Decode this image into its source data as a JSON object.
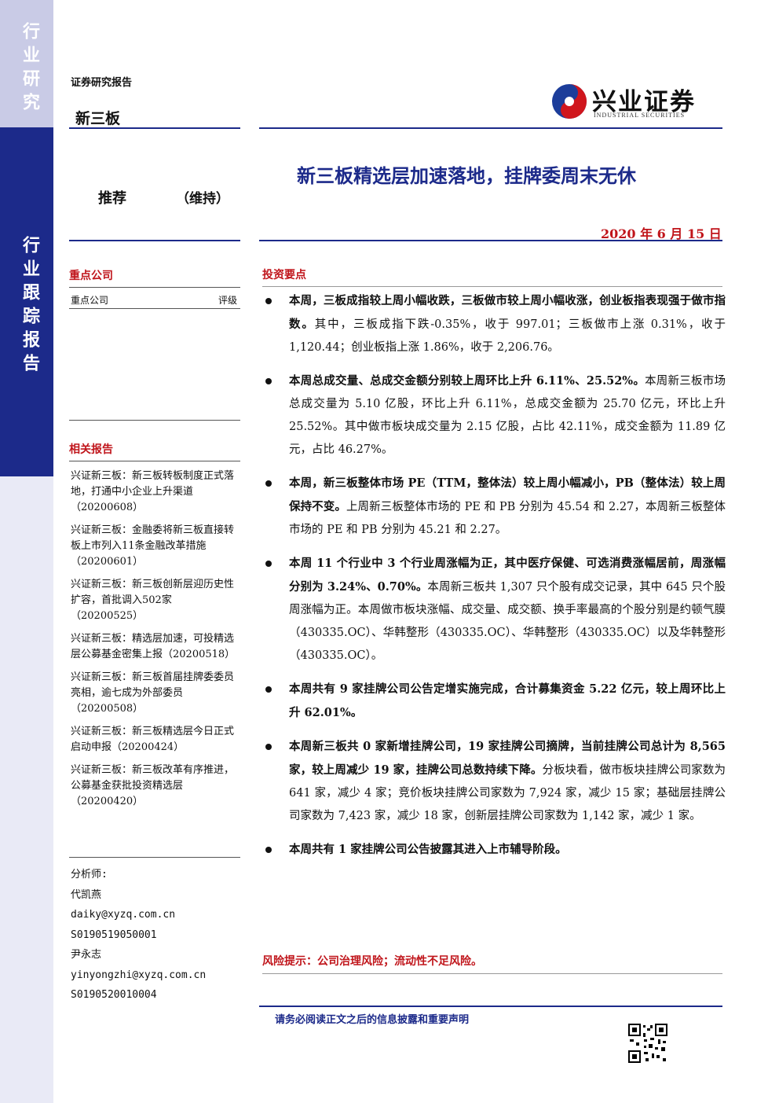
{
  "sidebar": {
    "top": "行业研究",
    "bottom": "行业跟踪报告"
  },
  "header": {
    "report_type": "证券研究报告",
    "sector": "新三板",
    "logo_cn": "兴业证券",
    "logo_en": "INDUSTRIAL SECURITIES"
  },
  "title": "新三板精选层加速落地，挂牌委周末无休",
  "rating": {
    "label": "推荐",
    "note": "（维持）"
  },
  "date": "2020 年 6 月 15 日",
  "key_companies": {
    "heading": "重点公司",
    "col1": "重点公司",
    "col2": "评级"
  },
  "related_reports": {
    "heading": "相关报告",
    "items": [
      "兴证新三板：新三板转板制度正式落地，打通中小企业上升渠道（20200608）",
      "兴证新三板：金融委将新三板直接转板上市列入11条金融改革措施（20200601）",
      "兴证新三板：新三板创新层迎历史性扩容，首批调入502家（20200525）",
      "兴证新三板：精选层加速，可投精选层公募基金密集上报（20200518）",
      "兴证新三板：新三板首届挂牌委委员亮相，逾七成为外部委员（20200508）",
      "兴证新三板：新三板精选层今日正式启动申报（20200424）",
      "兴证新三板：新三板改革有序推进，公募基金获批投资精选层（20200420）"
    ]
  },
  "analysts": {
    "label": "分析师:",
    "lines": [
      "代凯燕",
      "daiky@xyzq.com.cn",
      "S0190519050001",
      "尹永志",
      "yinyongzhi@xyzq.com.cn",
      "S0190520010004"
    ]
  },
  "summary": {
    "heading": "投资要点",
    "bullets": [
      {
        "bold": "本周，三板成指较上周小幅收跌，三板做市较上周小幅收涨，创业板指表现强于做市指数。",
        "text": "其中，三板成指下跌-0.35%，收于 997.01；三板做市上涨 0.31%，收于 1,120.44；创业板指上涨 1.86%，收于 2,206.76。"
      },
      {
        "bold": "本周总成交量、总成交金额分别较上周环比上升 6.11%、25.52%。",
        "text": "本周新三板市场总成交量为 5.10 亿股，环比上升 6.11%，总成交金额为 25.70 亿元，环比上升 25.52%。其中做市板块成交量为 2.15 亿股，占比 42.11%，成交金额为 11.89 亿元，占比 46.27%。"
      },
      {
        "bold": "本周，新三板整体市场 PE（TTM，整体法）较上周小幅减小，PB（整体法）较上周保持不变。",
        "text": "上周新三板整体市场的 PE 和 PB 分别为 45.54 和 2.27，本周新三板整体市场的 PE 和 PB 分别为 45.21 和 2.27。"
      },
      {
        "bold": "本周 11 个行业中 3 个行业周涨幅为正，其中医疗保健、可选消费涨幅居前，周涨幅分别为 3.24%、0.70%。",
        "text": "本周新三板共 1,307 只个股有成交记录，其中 645 只个股周涨幅为正。本周做市板块涨幅、成交量、成交额、换手率最高的个股分别是约顿气膜（430335.OC）、华韩整形（430335.OC）、华韩整形（430335.OC）以及华韩整形（430335.OC）。"
      },
      {
        "bold": "本周共有 9 家挂牌公司公告定增实施完成，合计募集资金 5.22 亿元，较上周环比上升 62.01%。"
      },
      {
        "bold": "本周新三板共 0 家新增挂牌公司，19 家挂牌公司摘牌，当前挂牌公司总计为 8,565 家，较上周减少 19 家，挂牌公司总数持续下降。",
        "text": "分板块看，做市板块挂牌公司家数为 641 家，减少 4 家；竞价板块挂牌公司家数为 7,924 家，减少 15 家；基础层挂牌公司家数为 7,423 家，减少 18 家，创新层挂牌公司家数为 1,142 家，减少 1 家。"
      },
      {
        "bold": "本周共有 1 家挂牌公司公告披露其进入上市辅导阶段。"
      }
    ]
  },
  "risk": "风险提示：公司治理风险；流动性不足风险。",
  "footer": "请务必阅读正文之后的信息披露和重要声明"
}
